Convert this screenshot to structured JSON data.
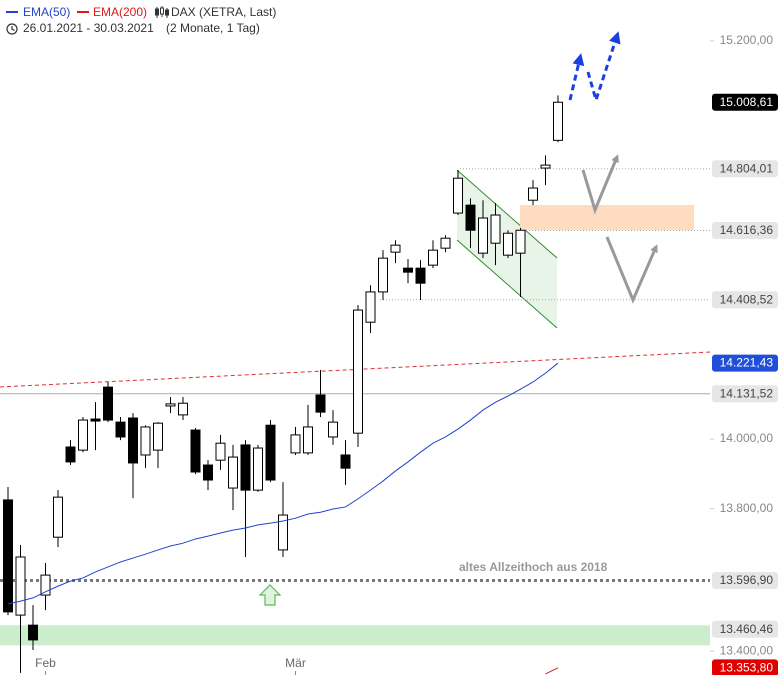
{
  "chart_data": {
    "type": "candlestick",
    "instrument": "DAX (XETRA, Last)",
    "date_range": "26.01.2021 - 30.03.2021",
    "period": "(2 Monate, 1 Tag)",
    "annotation": "altes Allzeithoch aus 2018",
    "log_scale": true,
    "categories": [
      null,
      null,
      null,
      "Feb",
      null,
      null,
      null,
      null,
      null,
      null,
      null,
      null,
      null,
      null,
      null,
      null,
      null,
      null,
      null,
      null,
      null,
      null,
      null,
      "Mär",
      null,
      null,
      null,
      null,
      null,
      null,
      null,
      null,
      null,
      null,
      null,
      null,
      null,
      null,
      null,
      null,
      null,
      null,
      null,
      null,
      null
    ],
    "open": [
      13825,
      13500,
      13472,
      13556,
      13719,
      13977,
      13968,
      14058,
      14151,
      14049,
      14061,
      13954,
      13968,
      14096,
      14070,
      14026,
      13925,
      13939,
      13859,
      13983,
      13853,
      14040,
      13683,
      13960,
      13960,
      14128,
      14006,
      13954,
      14017,
      14342,
      14432,
      14551,
      14503,
      14503,
      14512,
      14563,
      14669,
      14693,
      14548,
      14578,
      14542,
      14548,
      14708,
      14806,
      14891
    ],
    "high": [
      13862,
      13697,
      13528,
      13646,
      13853,
      13997,
      14064,
      14107,
      14166,
      14064,
      14075,
      14040,
      14049,
      14122,
      14122,
      14032,
      13939,
      14012,
      13983,
      13997,
      13983,
      14055,
      13876,
      14035,
      14099,
      14201,
      14084,
      13997,
      14393,
      14452,
      14557,
      14587,
      14530,
      14527,
      14587,
      14602,
      14800,
      14714,
      14708,
      14699,
      14617,
      14624,
      14769,
      14845,
      15030
    ],
    "low": [
      13500,
      13340,
      13403,
      13514,
      13691,
      13925,
      13962,
      13968,
      14049,
      13997,
      13830,
      13916,
      13916,
      14075,
      14055,
      13899,
      13853,
      13911,
      13796,
      13663,
      13848,
      13876,
      13663,
      13954,
      13954,
      14064,
      13983,
      13868,
      13977,
      14310,
      14408,
      14518,
      14458,
      14408,
      14503,
      14551,
      14663,
      14563,
      14533,
      14512,
      14533,
      14417,
      14693,
      14754,
      14885
    ],
    "close": [
      13509,
      13663,
      13431,
      13612,
      13833,
      13934,
      14055,
      14052,
      14055,
      14006,
      13931,
      14035,
      14046,
      14102,
      14104,
      13905,
      13882,
      13988,
      13948,
      13853,
      13974,
      13882,
      13782,
      14012,
      14035,
      14078,
      14049,
      13916,
      14378,
      14432,
      14533,
      14572,
      14491,
      14458,
      14557,
      14593,
      14775,
      14617,
      14654,
      14663,
      14608,
      14617,
      14745,
      14815,
      15008.61
    ],
    "lines": [
      {
        "name": "EMA(50)",
        "color": "#2244cc",
        "values": [
          13531,
          13539,
          13548,
          13565,
          13581,
          13595,
          13604,
          13621,
          13635,
          13649,
          13660,
          13671,
          13683,
          13694,
          13702,
          13714,
          13722,
          13731,
          13739,
          13745,
          13754,
          13759,
          13765,
          13773,
          13785,
          13790,
          13799,
          13805,
          13828,
          13853,
          13879,
          13908,
          13934,
          13962,
          13988,
          14006,
          14029,
          14055,
          14084,
          14107,
          14125,
          14145,
          14166,
          14192,
          14221.43
        ]
      },
      {
        "name": "EMA(200)",
        "color": "#e01818",
        "values": [
          null,
          null,
          null,
          null,
          null,
          null,
          null,
          null,
          null,
          null,
          null,
          null,
          null,
          null,
          null,
          null,
          null,
          null,
          null,
          null,
          null,
          null,
          null,
          null,
          null,
          null,
          null,
          null,
          null,
          null,
          null,
          null,
          null,
          null,
          null,
          null,
          null,
          null,
          null,
          null,
          null,
          null,
          null,
          13337,
          13353.8
        ]
      }
    ],
    "levels": [
      {
        "value": 15008.61,
        "label": "15.008,61",
        "color": "#000000"
      },
      {
        "value": 14804.01,
        "label": "14.804,01",
        "color": "#e6e6e6"
      },
      {
        "value": 14616.36,
        "label": "14.616,36",
        "color": "#e6e6e6"
      },
      {
        "value": 14408.52,
        "label": "14.408,52",
        "color": "#e6e6e6"
      },
      {
        "value": 14221.43,
        "label": "14.221,43",
        "color": "#1f4fd8"
      },
      {
        "value": 14131.52,
        "label": "14.131,52",
        "color": "#e6e6e6"
      },
      {
        "value": 13596.9,
        "label": "13.596,90",
        "color": "#e6e6e6"
      },
      {
        "value": 13460.46,
        "label": "13.460,46",
        "color": "#e6e6e6"
      },
      {
        "value": 13353.8,
        "label": "13.353,80",
        "color": "#e00000"
      }
    ],
    "ylim": [
      13334,
      15329
    ],
    "yticks": [
      {
        "value": 15200,
        "label": "15.200,00"
      },
      {
        "value": 14000,
        "label": "14.000,00"
      },
      {
        "value": 13800,
        "label": "13.800,00"
      },
      {
        "value": 13400,
        "label": "13.400,00"
      }
    ]
  }
}
